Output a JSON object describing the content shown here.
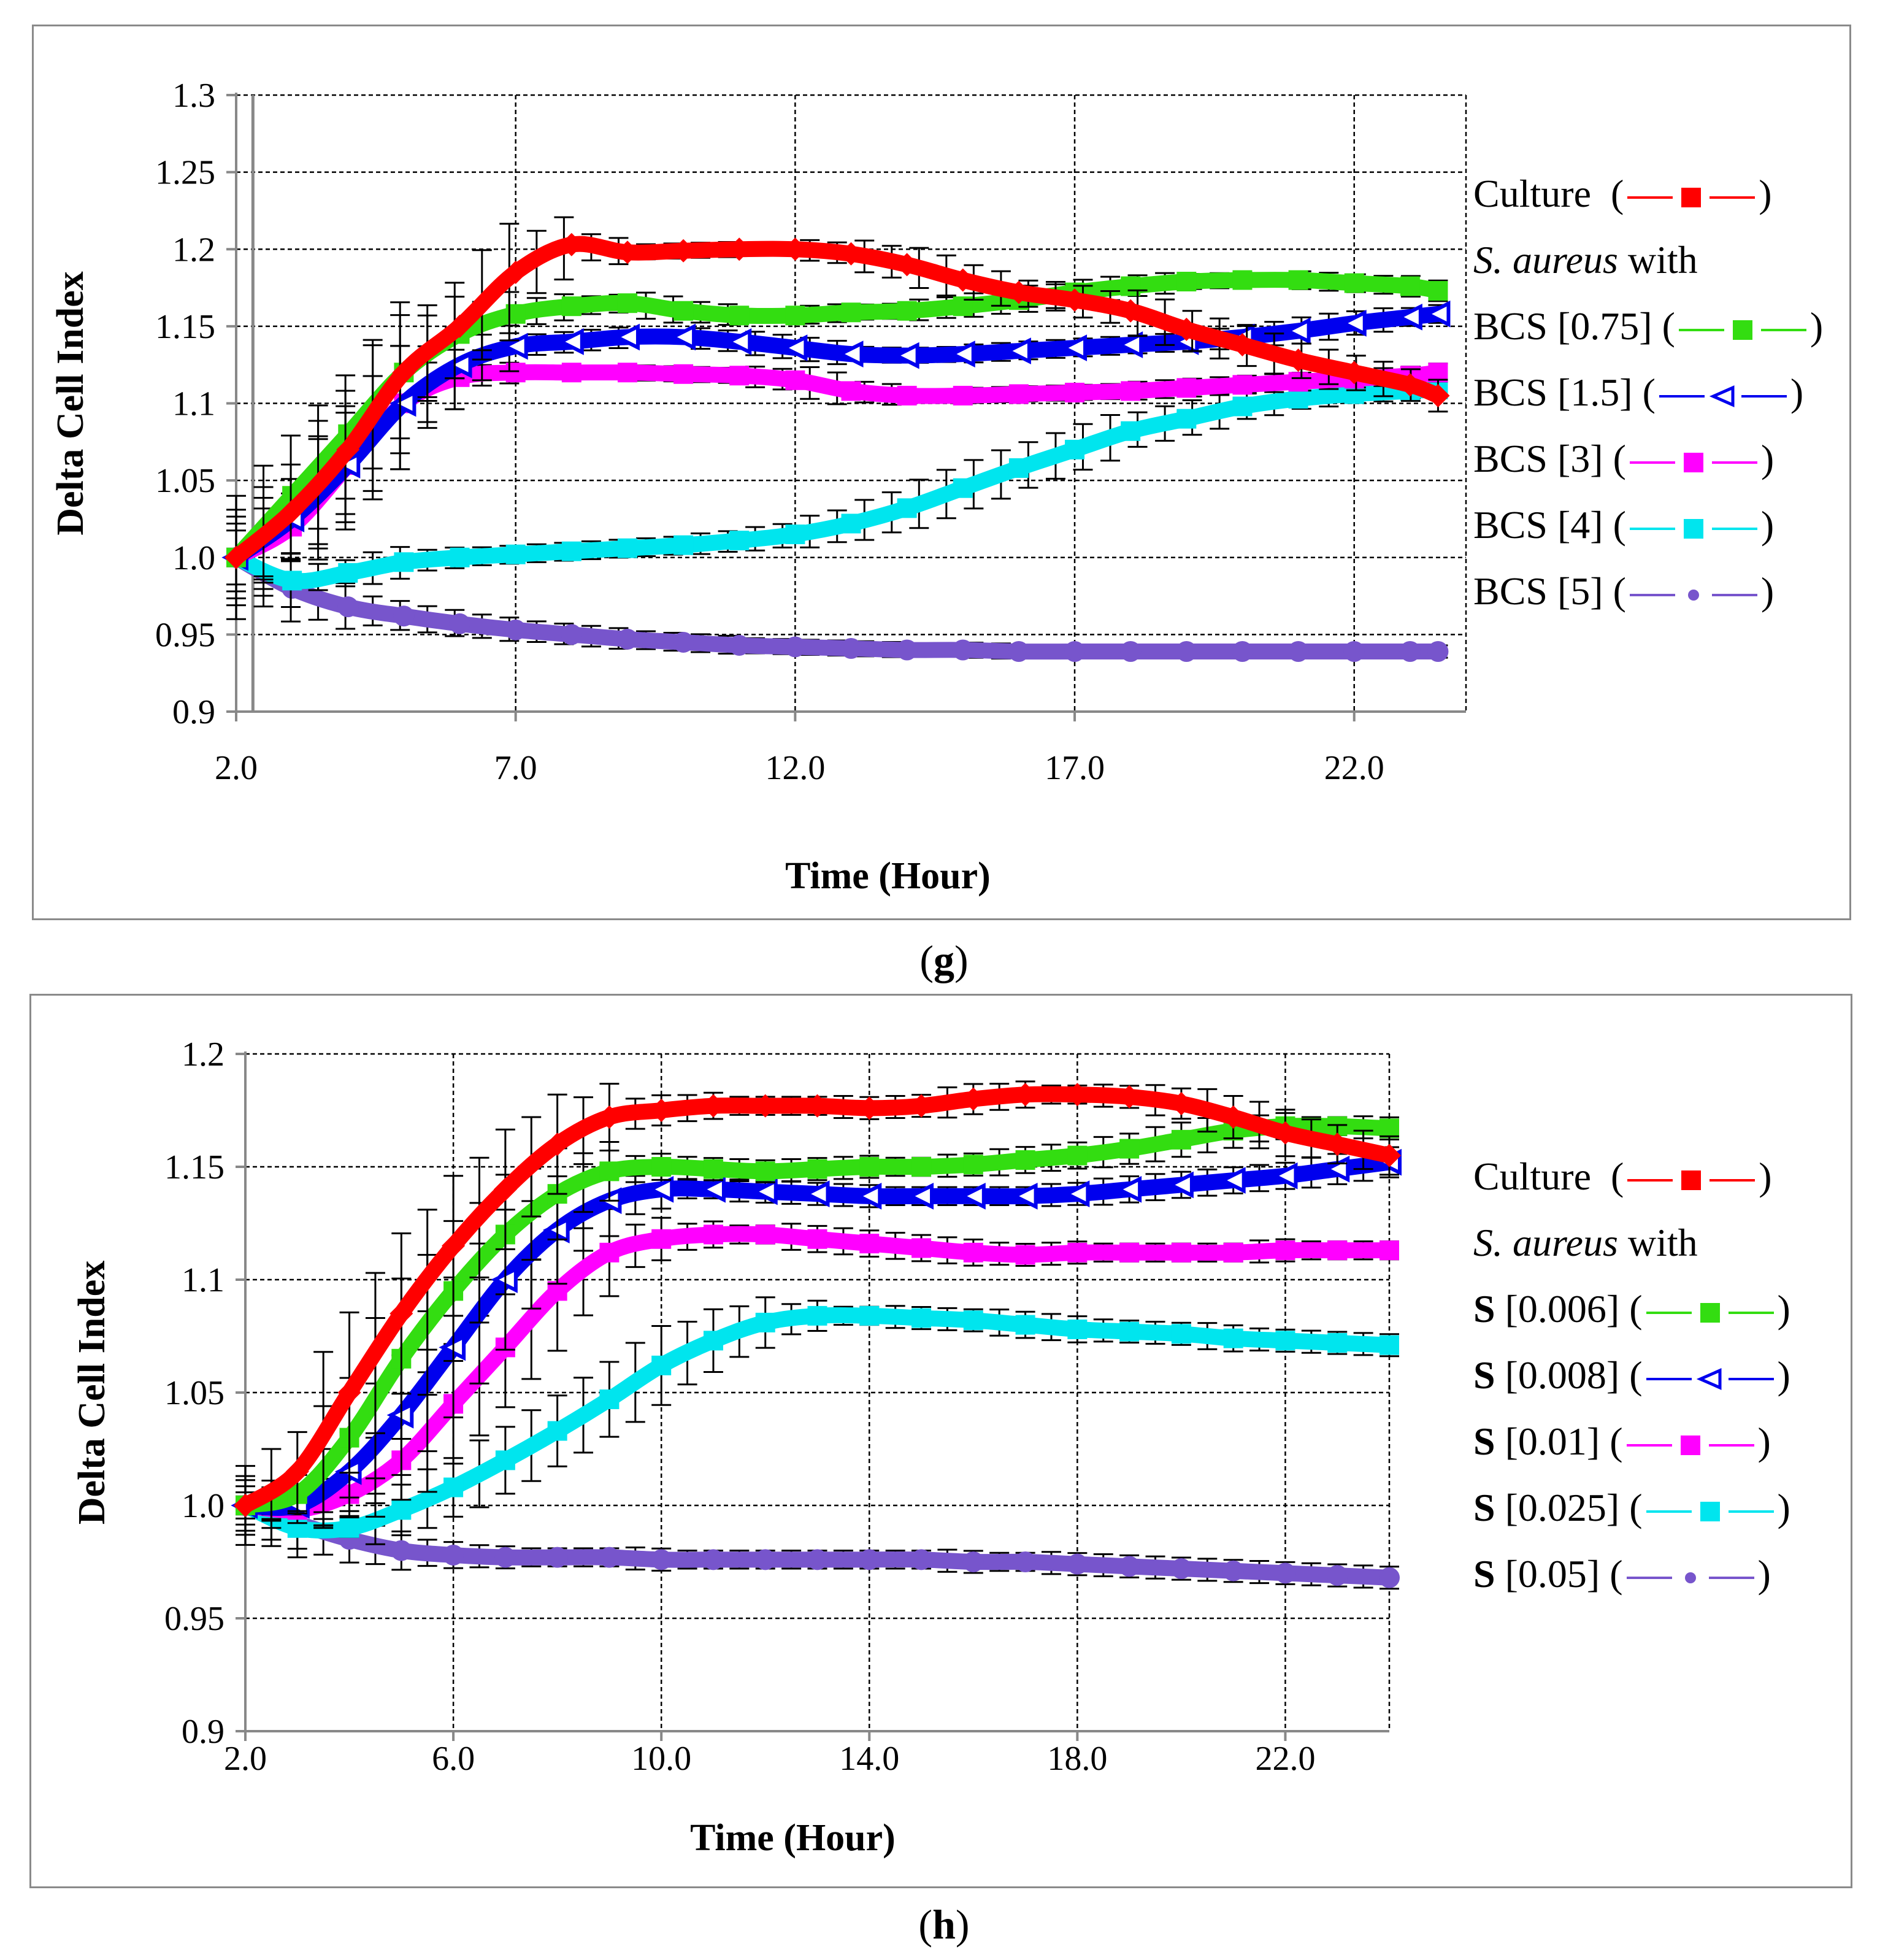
{
  "panels": [
    {
      "id": "g",
      "label": "g",
      "legend": {
        "header_species": "S. aureus",
        "header_suffix": " with",
        "entries": [
          {
            "series": 0,
            "prefix": "",
            "text": "Culture  ",
            "marker": "square",
            "color": "#ff0000"
          },
          {
            "series": 1,
            "prefix": "",
            "text": "BCS [0.75] ",
            "marker": "square",
            "color": "#33dd11"
          },
          {
            "series": 2,
            "prefix": "",
            "text": "BCS [1.5] ",
            "marker": "triangle-open",
            "color": "#0000ee"
          },
          {
            "series": 3,
            "prefix": "",
            "text": "BCS [3] ",
            "marker": "square",
            "color": "#ff00ff"
          },
          {
            "series": 4,
            "prefix": "",
            "text": "BCS [4] ",
            "marker": "square",
            "color": "#00e5ee"
          },
          {
            "series": 5,
            "prefix": "",
            "text": "BCS [5] ",
            "marker": "dot",
            "color": "#7755cc"
          }
        ]
      },
      "chart": {
        "type": "line",
        "xlabel": "Time (Hour)",
        "ylabel": "Delta Cell Index",
        "xlim": [
          2.0,
          24.0
        ],
        "ylim": [
          0.9,
          1.3
        ],
        "xticks": [
          2.0,
          7.0,
          12.0,
          17.0,
          22.0
        ],
        "xtick_labels": [
          "2.0",
          "7.0",
          "12.0",
          "17.0",
          "22.0"
        ],
        "yticks": [
          0.9,
          0.95,
          1.0,
          1.05,
          1.1,
          1.15,
          1.2,
          1.25,
          1.3
        ],
        "ytick_labels": [
          "0.9",
          "0.95",
          "1.0",
          "1.05",
          "1.1",
          "1.15",
          "1.2",
          "1.25",
          "1.3"
        ],
        "grid": true,
        "vline_x": 2.3,
        "x_end": 23.5,
        "series": [
          {
            "color": "#ff0000",
            "marker": "diamond",
            "x": [
              2,
              3,
              4,
              5,
              6,
              7,
              8,
              9,
              10,
              11,
              12,
              13,
              14,
              15,
              16,
              17,
              18,
              19,
              20,
              21,
              22,
              23,
              23.5
            ],
            "y": [
              1.0,
              1.03,
              1.07,
              1.12,
              1.15,
              1.185,
              1.203,
              1.198,
              1.199,
              1.2,
              1.2,
              1.197,
              1.19,
              1.18,
              1.172,
              1.167,
              1.16,
              1.148,
              1.138,
              1.128,
              1.12,
              1.112,
              1.105
            ]
          },
          {
            "color": "#33dd11",
            "marker": "square",
            "x": [
              2,
              3,
              4,
              5,
              6,
              7,
              8,
              9,
              10,
              11,
              12,
              13,
              14,
              15,
              16,
              17,
              18,
              19,
              20,
              21,
              22,
              23,
              23.5
            ],
            "y": [
              1.0,
              1.04,
              1.08,
              1.12,
              1.145,
              1.158,
              1.163,
              1.165,
              1.16,
              1.157,
              1.157,
              1.159,
              1.16,
              1.163,
              1.167,
              1.172,
              1.176,
              1.179,
              1.18,
              1.18,
              1.178,
              1.176,
              1.173
            ]
          },
          {
            "color": "#0000ee",
            "marker": "triangle",
            "x": [
              2,
              3,
              4,
              5,
              6,
              7,
              8,
              9,
              10,
              11,
              12,
              13,
              14,
              15,
              16,
              17,
              18,
              19,
              20,
              21,
              22,
              23,
              23.5
            ],
            "y": [
              1.0,
              1.025,
              1.06,
              1.1,
              1.125,
              1.137,
              1.14,
              1.143,
              1.143,
              1.14,
              1.136,
              1.132,
              1.131,
              1.132,
              1.134,
              1.136,
              1.138,
              1.14,
              1.143,
              1.147,
              1.152,
              1.156,
              1.158
            ]
          },
          {
            "color": "#ff00ff",
            "marker": "square",
            "x": [
              2,
              3,
              4,
              5,
              6,
              7,
              8,
              9,
              10,
              11,
              12,
              13,
              14,
              15,
              16,
              17,
              18,
              19,
              20,
              21,
              22,
              23,
              23.5
            ],
            "y": [
              1.0,
              1.02,
              1.06,
              1.1,
              1.117,
              1.12,
              1.12,
              1.12,
              1.119,
              1.118,
              1.115,
              1.108,
              1.105,
              1.105,
              1.106,
              1.107,
              1.108,
              1.11,
              1.112,
              1.114,
              1.116,
              1.118,
              1.12
            ]
          },
          {
            "color": "#00e5ee",
            "marker": "square",
            "x": [
              2,
              3,
              4,
              5,
              6,
              7,
              8,
              9,
              10,
              11,
              12,
              13,
              14,
              15,
              16,
              17,
              18,
              19,
              20,
              21,
              22,
              23,
              23.5
            ],
            "y": [
              1.0,
              0.985,
              0.99,
              0.997,
              1.0,
              1.002,
              1.004,
              1.006,
              1.008,
              1.011,
              1.015,
              1.022,
              1.032,
              1.045,
              1.058,
              1.07,
              1.082,
              1.09,
              1.098,
              1.103,
              1.106,
              1.108,
              1.109
            ]
          },
          {
            "color": "#7755cc",
            "marker": "dot",
            "x": [
              2,
              3,
              4,
              5,
              6,
              7,
              8,
              9,
              10,
              11,
              12,
              13,
              14,
              15,
              16,
              17,
              18,
              19,
              20,
              21,
              22,
              23,
              23.5
            ],
            "y": [
              1.0,
              0.98,
              0.968,
              0.962,
              0.957,
              0.953,
              0.95,
              0.947,
              0.945,
              0.943,
              0.942,
              0.941,
              0.94,
              0.94,
              0.939,
              0.939,
              0.939,
              0.939,
              0.939,
              0.939,
              0.939,
              0.939,
              0.939
            ]
          }
        ]
      }
    },
    {
      "id": "h",
      "label": "h",
      "legend": {
        "header_species": "S. aureus",
        "header_suffix": " with",
        "entries": [
          {
            "series": 0,
            "prefix": "",
            "text": "Culture  ",
            "marker": "square",
            "color": "#ff0000"
          },
          {
            "series": 1,
            "prefix": "S",
            "text": " [0.006] ",
            "marker": "square",
            "color": "#33dd11"
          },
          {
            "series": 2,
            "prefix": "S",
            "text": " [0.008] ",
            "marker": "triangle-open",
            "color": "#0000ee"
          },
          {
            "series": 3,
            "prefix": "S",
            "text": " [0.01] ",
            "marker": "square",
            "color": "#ff00ff"
          },
          {
            "series": 4,
            "prefix": "S",
            "text": " [0.025] ",
            "marker": "square",
            "color": "#00e5ee"
          },
          {
            "series": 5,
            "prefix": "S",
            "text": " [0.05] ",
            "marker": "dot",
            "color": "#7755cc"
          }
        ]
      },
      "chart": {
        "type": "line",
        "xlabel": "Time (Hour)",
        "ylabel": "Delta Cell Index",
        "xlim": [
          2.0,
          24.0
        ],
        "ylim": [
          0.9,
          1.2
        ],
        "xticks": [
          2.0,
          6.0,
          10.0,
          14.0,
          18.0,
          22.0
        ],
        "xtick_labels": [
          "2.0",
          "6.0",
          "10.0",
          "14.0",
          "18.0",
          "22.0"
        ],
        "yticks": [
          0.9,
          0.95,
          1.0,
          1.05,
          1.1,
          1.15,
          1.2
        ],
        "ytick_labels": [
          "0.9",
          "0.95",
          "1.0",
          "1.05",
          "1.1",
          "1.15",
          "1.2"
        ],
        "grid": true,
        "x_end": 24.0,
        "series": [
          {
            "color": "#ff0000",
            "marker": "diamond",
            "x": [
              2,
              3,
              4,
              5,
              6,
              7,
              8,
              9,
              10,
              11,
              12,
              13,
              14,
              15,
              16,
              17,
              18,
              19,
              20,
              21,
              22,
              23,
              24
            ],
            "y": [
              1.0,
              1.015,
              1.05,
              1.085,
              1.115,
              1.14,
              1.16,
              1.172,
              1.175,
              1.177,
              1.177,
              1.177,
              1.176,
              1.177,
              1.18,
              1.182,
              1.182,
              1.181,
              1.178,
              1.172,
              1.165,
              1.16,
              1.155
            ]
          },
          {
            "color": "#33dd11",
            "marker": "square",
            "x": [
              2,
              3,
              4,
              5,
              6,
              7,
              8,
              9,
              10,
              11,
              12,
              13,
              14,
              15,
              16,
              17,
              18,
              19,
              20,
              21,
              22,
              23,
              24
            ],
            "y": [
              1.0,
              1.005,
              1.03,
              1.065,
              1.095,
              1.12,
              1.138,
              1.148,
              1.15,
              1.149,
              1.148,
              1.149,
              1.15,
              1.15,
              1.151,
              1.153,
              1.155,
              1.158,
              1.162,
              1.166,
              1.168,
              1.168,
              1.167
            ]
          },
          {
            "color": "#0000ee",
            "marker": "triangle",
            "x": [
              2,
              3,
              4,
              5,
              6,
              7,
              8,
              9,
              10,
              11,
              12,
              13,
              14,
              15,
              16,
              17,
              18,
              19,
              20,
              21,
              22,
              23,
              24
            ],
            "y": [
              1.0,
              1.0,
              1.015,
              1.04,
              1.07,
              1.1,
              1.122,
              1.135,
              1.14,
              1.14,
              1.139,
              1.138,
              1.137,
              1.137,
              1.137,
              1.137,
              1.138,
              1.14,
              1.142,
              1.144,
              1.146,
              1.149,
              1.152
            ]
          },
          {
            "color": "#ff00ff",
            "marker": "square",
            "x": [
              2,
              3,
              4,
              5,
              6,
              7,
              8,
              9,
              10,
              11,
              12,
              13,
              14,
              15,
              16,
              17,
              18,
              19,
              20,
              21,
              22,
              23,
              24
            ],
            "y": [
              1.0,
              0.998,
              1.005,
              1.02,
              1.045,
              1.07,
              1.095,
              1.112,
              1.118,
              1.12,
              1.12,
              1.118,
              1.116,
              1.114,
              1.112,
              1.111,
              1.112,
              1.112,
              1.112,
              1.112,
              1.113,
              1.113,
              1.113
            ]
          },
          {
            "color": "#00e5ee",
            "marker": "square",
            "x": [
              2,
              3,
              4,
              5,
              6,
              7,
              8,
              9,
              10,
              11,
              12,
              13,
              14,
              15,
              16,
              17,
              18,
              19,
              20,
              21,
              22,
              23,
              24
            ],
            "y": [
              1.0,
              0.99,
              0.99,
              0.998,
              1.008,
              1.02,
              1.033,
              1.047,
              1.062,
              1.073,
              1.081,
              1.084,
              1.084,
              1.083,
              1.082,
              1.08,
              1.078,
              1.077,
              1.076,
              1.074,
              1.073,
              1.072,
              1.071
            ]
          },
          {
            "color": "#7755cc",
            "marker": "dot",
            "x": [
              2,
              3,
              4,
              5,
              6,
              7,
              8,
              9,
              10,
              11,
              12,
              13,
              14,
              15,
              16,
              17,
              18,
              19,
              20,
              21,
              22,
              23,
              24
            ],
            "y": [
              1.0,
              0.992,
              0.985,
              0.98,
              0.978,
              0.977,
              0.977,
              0.977,
              0.976,
              0.976,
              0.976,
              0.976,
              0.976,
              0.976,
              0.975,
              0.975,
              0.974,
              0.973,
              0.972,
              0.971,
              0.97,
              0.969,
              0.968
            ]
          }
        ]
      }
    }
  ]
}
